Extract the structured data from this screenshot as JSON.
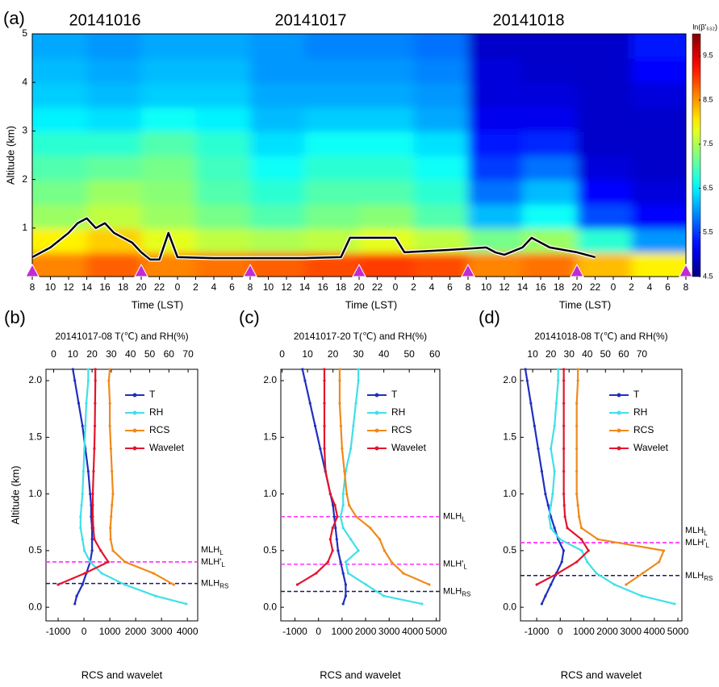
{
  "chart_data": [
    {
      "type": "heatmap",
      "panel": "(a)",
      "annotations": [
        "20141016",
        "20141017",
        "20141018"
      ],
      "xlabel": "Time (LST)",
      "ylabel": "Altitude (km)",
      "xlim": [
        0,
        72
      ],
      "xticks": [
        {
          "value": 0,
          "label": "8"
        },
        {
          "value": 2,
          "label": "10"
        },
        {
          "value": 4,
          "label": "12"
        },
        {
          "value": 6,
          "label": "14"
        },
        {
          "value": 8,
          "label": "16"
        },
        {
          "value": 10,
          "label": "18"
        },
        {
          "value": 12,
          "label": "20"
        },
        {
          "value": 14,
          "label": "22"
        },
        {
          "value": 16,
          "label": "0"
        },
        {
          "value": 18,
          "label": "2"
        },
        {
          "value": 20,
          "label": "4"
        },
        {
          "value": 22,
          "label": "6"
        },
        {
          "value": 24,
          "label": "8"
        },
        {
          "value": 26,
          "label": "10"
        },
        {
          "value": 28,
          "label": "12"
        },
        {
          "value": 30,
          "label": "14"
        },
        {
          "value": 32,
          "label": "16"
        },
        {
          "value": 34,
          "label": "18"
        },
        {
          "value": 36,
          "label": "20"
        },
        {
          "value": 38,
          "label": "22"
        },
        {
          "value": 40,
          "label": "0"
        },
        {
          "value": 42,
          "label": "2"
        },
        {
          "value": 44,
          "label": "4"
        },
        {
          "value": 46,
          "label": "6"
        },
        {
          "value": 48,
          "label": "8"
        },
        {
          "value": 50,
          "label": "10"
        },
        {
          "value": 52,
          "label": "12"
        },
        {
          "value": 54,
          "label": "14"
        },
        {
          "value": 56,
          "label": "16"
        },
        {
          "value": 58,
          "label": "18"
        },
        {
          "value": 60,
          "label": "20"
        },
        {
          "value": 62,
          "label": "22"
        },
        {
          "value": 64,
          "label": "0"
        },
        {
          "value": 66,
          "label": "2"
        },
        {
          "value": 68,
          "label": "4"
        },
        {
          "value": 70,
          "label": "6"
        },
        {
          "value": 72,
          "label": "8"
        }
      ],
      "ylim": [
        0,
        5
      ],
      "yticks": [
        1,
        2,
        3,
        4,
        5
      ],
      "xbins": [
        0,
        6,
        12,
        18,
        24,
        30,
        36,
        42,
        48,
        54,
        60,
        66,
        72
      ],
      "ybins": [
        0,
        0.5,
        1,
        1.5,
        2,
        2.5,
        3,
        3.5,
        4,
        4.5,
        5
      ],
      "z": [
        [
          8.6,
          8.8,
          8.6,
          8.7,
          8.8,
          8.9,
          9.0,
          8.9,
          8.6,
          8.7,
          8.3,
          8.0
        ],
        [
          8.0,
          8.2,
          7.8,
          7.6,
          7.5,
          7.6,
          7.8,
          7.6,
          7.2,
          7.4,
          6.8,
          6.0
        ],
        [
          7.4,
          7.6,
          7.4,
          7.2,
          7.0,
          7.2,
          7.3,
          7.0,
          6.2,
          6.6,
          5.6,
          5.2
        ],
        [
          7.2,
          7.4,
          7.3,
          7.0,
          6.8,
          7.0,
          7.0,
          6.8,
          5.8,
          6.2,
          5.2,
          5.0
        ],
        [
          7.0,
          7.1,
          7.2,
          6.9,
          6.6,
          6.8,
          6.8,
          6.6,
          5.5,
          5.8,
          5.0,
          4.9
        ],
        [
          6.8,
          6.8,
          7.0,
          6.8,
          6.4,
          6.6,
          6.6,
          6.4,
          5.3,
          5.4,
          4.9,
          4.9
        ],
        [
          6.5,
          6.4,
          6.6,
          6.5,
          6.2,
          6.3,
          6.3,
          6.1,
          5.1,
          5.1,
          4.9,
          4.9
        ],
        [
          6.3,
          6.2,
          6.3,
          6.3,
          6.1,
          6.1,
          6.1,
          6.0,
          5.0,
          5.0,
          4.9,
          5.0
        ],
        [
          6.2,
          6.1,
          6.2,
          6.2,
          6.0,
          6.0,
          6.0,
          5.9,
          5.0,
          4.9,
          4.9,
          5.2
        ],
        [
          6.1,
          6.0,
          6.1,
          6.1,
          6.0,
          5.9,
          5.9,
          5.8,
          4.9,
          4.9,
          4.9,
          5.3
        ]
      ],
      "colorbar_title": "ln(β'₅₃₂)",
      "clim": [
        4.5,
        10
      ],
      "cticks": [
        4.5,
        5.5,
        6.5,
        7.5,
        8.5,
        9.5
      ],
      "mlh": {
        "color": "#000000",
        "x": [
          0,
          2,
          4,
          5,
          6,
          7,
          8,
          9,
          11,
          12,
          13,
          14,
          15,
          16,
          20,
          30,
          34,
          35,
          40,
          41,
          46,
          50,
          51,
          52,
          54,
          55,
          57,
          60,
          62
        ],
        "y": [
          0.4,
          0.6,
          0.9,
          1.1,
          1.2,
          1.0,
          1.1,
          0.9,
          0.7,
          0.5,
          0.35,
          0.35,
          0.9,
          0.4,
          0.38,
          0.38,
          0.4,
          0.8,
          0.8,
          0.5,
          0.55,
          0.6,
          0.5,
          0.45,
          0.6,
          0.8,
          0.6,
          0.5,
          0.4
        ]
      },
      "markers": {
        "color": "#c22ad6",
        "x": [
          0,
          12,
          24,
          36,
          48,
          60,
          72
        ]
      }
    },
    {
      "type": "profile",
      "panel": "(b)",
      "title": "20141017-08 T(℃) and RH(%)",
      "xlabel": "RCS and wavelet",
      "ylabel": "Altitude (km)",
      "xlim": [
        -1470,
        4400
      ],
      "xticks": [
        -1000,
        0,
        1000,
        2000,
        3000,
        4000
      ],
      "x2lim": [
        -4,
        75
      ],
      "x2ticks": [
        0,
        10,
        20,
        30,
        40,
        50,
        60,
        70
      ],
      "ylim": [
        -0.12,
        2.1
      ],
      "yticks": [
        {
          "value": 0,
          "label": "0.0"
        },
        {
          "value": 0.5,
          "label": "0.5"
        },
        {
          "value": 1,
          "label": "1.0"
        },
        {
          "value": 1.5,
          "label": "1.5"
        },
        {
          "value": 2,
          "label": "2.0"
        }
      ],
      "legend": "upper right",
      "y": [
        0.03,
        0.1,
        0.2,
        0.3,
        0.4,
        0.5,
        0.6,
        0.7,
        0.8,
        0.9,
        1.0,
        1.2,
        1.4,
        1.6,
        1.8,
        2.0,
        2.1
      ],
      "series": [
        {
          "name": "T",
          "color": "#1f2fbf",
          "axis": "x2",
          "values": [
            11,
            12,
            15,
            17,
            19,
            20,
            20,
            20,
            19.5,
            19.5,
            19,
            18,
            16.5,
            15,
            13,
            11,
            10
          ]
        },
        {
          "name": "RH",
          "color": "#40e0e8",
          "axis": "x2",
          "values": [
            69,
            53,
            37,
            25,
            19,
            16,
            15,
            14,
            14,
            14.5,
            15,
            15.5,
            16,
            16.5,
            17,
            18,
            18
          ]
        },
        {
          "name": "RCS",
          "color": "#f08a1a",
          "values": [
            null,
            null,
            3470,
            2690,
            1590,
            1120,
            1030,
            1020,
            1050,
            1080,
            1120,
            1080,
            1040,
            1000,
            1000,
            960,
            1000
          ]
        },
        {
          "name": "Wavelet",
          "color": "#e4142c",
          "values": [
            null,
            null,
            -1000,
            30,
            940,
            650,
            400,
            360,
            340,
            340,
            340,
            370,
            400,
            420,
            430,
            440,
            440
          ]
        }
      ],
      "hlines": [
        {
          "label": "MLH",
          "sub": "L",
          "value": 0.4,
          "color": "#ff33ff"
        },
        {
          "label": "MLH'",
          "sub": "L",
          "value": 0.4,
          "color": "#ff33ff"
        },
        {
          "label": "MLH",
          "sub": "RS",
          "value": 0.21,
          "color": "#1a1a6e"
        }
      ]
    },
    {
      "type": "profile",
      "panel": "(c)",
      "title": "20141017-20 T(℃) and RH(%)",
      "xlabel": "RCS and wavelet",
      "xlim": [
        -1600,
        5150
      ],
      "xticks": [
        -1000,
        0,
        1000,
        2000,
        3000,
        4000,
        5000
      ],
      "x2lim": [
        -0.5,
        62
      ],
      "x2ticks": [
        0,
        10,
        20,
        30,
        40,
        50,
        60
      ],
      "ylim": [
        -0.12,
        2.1
      ],
      "yticks": [
        {
          "value": 0,
          "label": "0.0"
        },
        {
          "value": 0.5,
          "label": "0.5"
        },
        {
          "value": 1,
          "label": "1.0"
        },
        {
          "value": 1.5,
          "label": "1.5"
        },
        {
          "value": 2,
          "label": "2.0"
        }
      ],
      "legend": "upper right",
      "y": [
        0.03,
        0.1,
        0.2,
        0.3,
        0.4,
        0.5,
        0.6,
        0.7,
        0.8,
        0.9,
        1.0,
        1.2,
        1.4,
        1.6,
        1.8,
        2.0,
        2.1
      ],
      "series": [
        {
          "name": "T",
          "color": "#1f2fbf",
          "axis": "x2",
          "values": [
            24,
            25,
            25,
            24,
            23,
            22,
            21.5,
            21,
            20.5,
            20,
            19,
            17,
            15,
            13,
            11,
            9,
            8
          ]
        },
        {
          "name": "RH",
          "color": "#40e0e8",
          "axis": "x2",
          "values": [
            55,
            40,
            33,
            26,
            25,
            30,
            27,
            24,
            23,
            24,
            24,
            25,
            27,
            28,
            29,
            30,
            30
          ]
        },
        {
          "name": "RCS",
          "color": "#f08a1a",
          "values": [
            null,
            null,
            4700,
            3600,
            3100,
            2800,
            2600,
            2200,
            1600,
            1300,
            1200,
            1100,
            1000,
            950,
            900,
            900,
            900
          ]
        },
        {
          "name": "Wavelet",
          "color": "#e4142c",
          "values": [
            null,
            null,
            -900,
            -100,
            400,
            600,
            500,
            600,
            800,
            700,
            500,
            300,
            250,
            250,
            250,
            250,
            250
          ]
        }
      ],
      "hlines": [
        {
          "label": "MLH",
          "sub": "L",
          "value": 0.8,
          "color": "#ff33ff"
        },
        {
          "label": "MLH'",
          "sub": "L",
          "value": 0.38,
          "color": "#ff33ff"
        },
        {
          "label": "MLH",
          "sub": "RS",
          "value": 0.14,
          "color": "#1a1a6e"
        }
      ]
    },
    {
      "type": "profile",
      "panel": "(d)",
      "title": "20141018-08 T(℃) and RH(%)",
      "xlabel": "RCS and wavelet",
      "xlim": [
        -1690,
        5170
      ],
      "xticks": [
        -1000,
        0,
        1000,
        2000,
        3000,
        4000,
        5000
      ],
      "x2lim": [
        3.3,
        92
      ],
      "x2ticks": [
        10,
        20,
        30,
        40,
        50,
        60,
        70
      ],
      "ylim": [
        -0.12,
        2.1
      ],
      "yticks": [
        {
          "value": 0,
          "label": "0.0"
        },
        {
          "value": 0.5,
          "label": "0.5"
        },
        {
          "value": 1,
          "label": "1.0"
        },
        {
          "value": 1.5,
          "label": "1.5"
        },
        {
          "value": 2,
          "label": "2.0"
        }
      ],
      "legend": "upper right",
      "y": [
        0.03,
        0.1,
        0.2,
        0.3,
        0.4,
        0.5,
        0.6,
        0.7,
        0.8,
        0.9,
        1.0,
        1.2,
        1.4,
        1.6,
        1.8,
        2.0,
        2.1
      ],
      "series": [
        {
          "name": "T",
          "color": "#1f2fbf",
          "axis": "x2",
          "values": [
            15,
            17,
            20,
            23,
            26,
            27,
            24,
            22,
            20,
            18.5,
            17,
            15,
            13,
            11,
            9,
            7,
            6
          ]
        },
        {
          "name": "RH",
          "color": "#40e0e8",
          "axis": "x2",
          "values": [
            88,
            70,
            55,
            45,
            40,
            37,
            25,
            20,
            19,
            20,
            21,
            22,
            20,
            22,
            23,
            24,
            24
          ]
        },
        {
          "name": "RCS",
          "color": "#f08a1a",
          "values": [
            null,
            null,
            2800,
            3500,
            4200,
            4400,
            1600,
            900,
            800,
            750,
            700,
            700,
            700,
            700,
            700,
            750,
            750
          ]
        },
        {
          "name": "Wavelet",
          "color": "#e4142c",
          "values": [
            null,
            null,
            -1000,
            -100,
            700,
            1200,
            900,
            300,
            200,
            170,
            150,
            150,
            150,
            150,
            150,
            150,
            150
          ]
        }
      ],
      "hlines": [
        {
          "label": "MLH",
          "sub": "L",
          "value": 0.57,
          "color": "#ff33ff"
        },
        {
          "label": "MLH'",
          "sub": "L",
          "value": 0.57,
          "color": "#ff33ff"
        },
        {
          "label": "MLH",
          "sub": "RS",
          "value": 0.28,
          "color": "#1a1a6e"
        }
      ]
    }
  ]
}
